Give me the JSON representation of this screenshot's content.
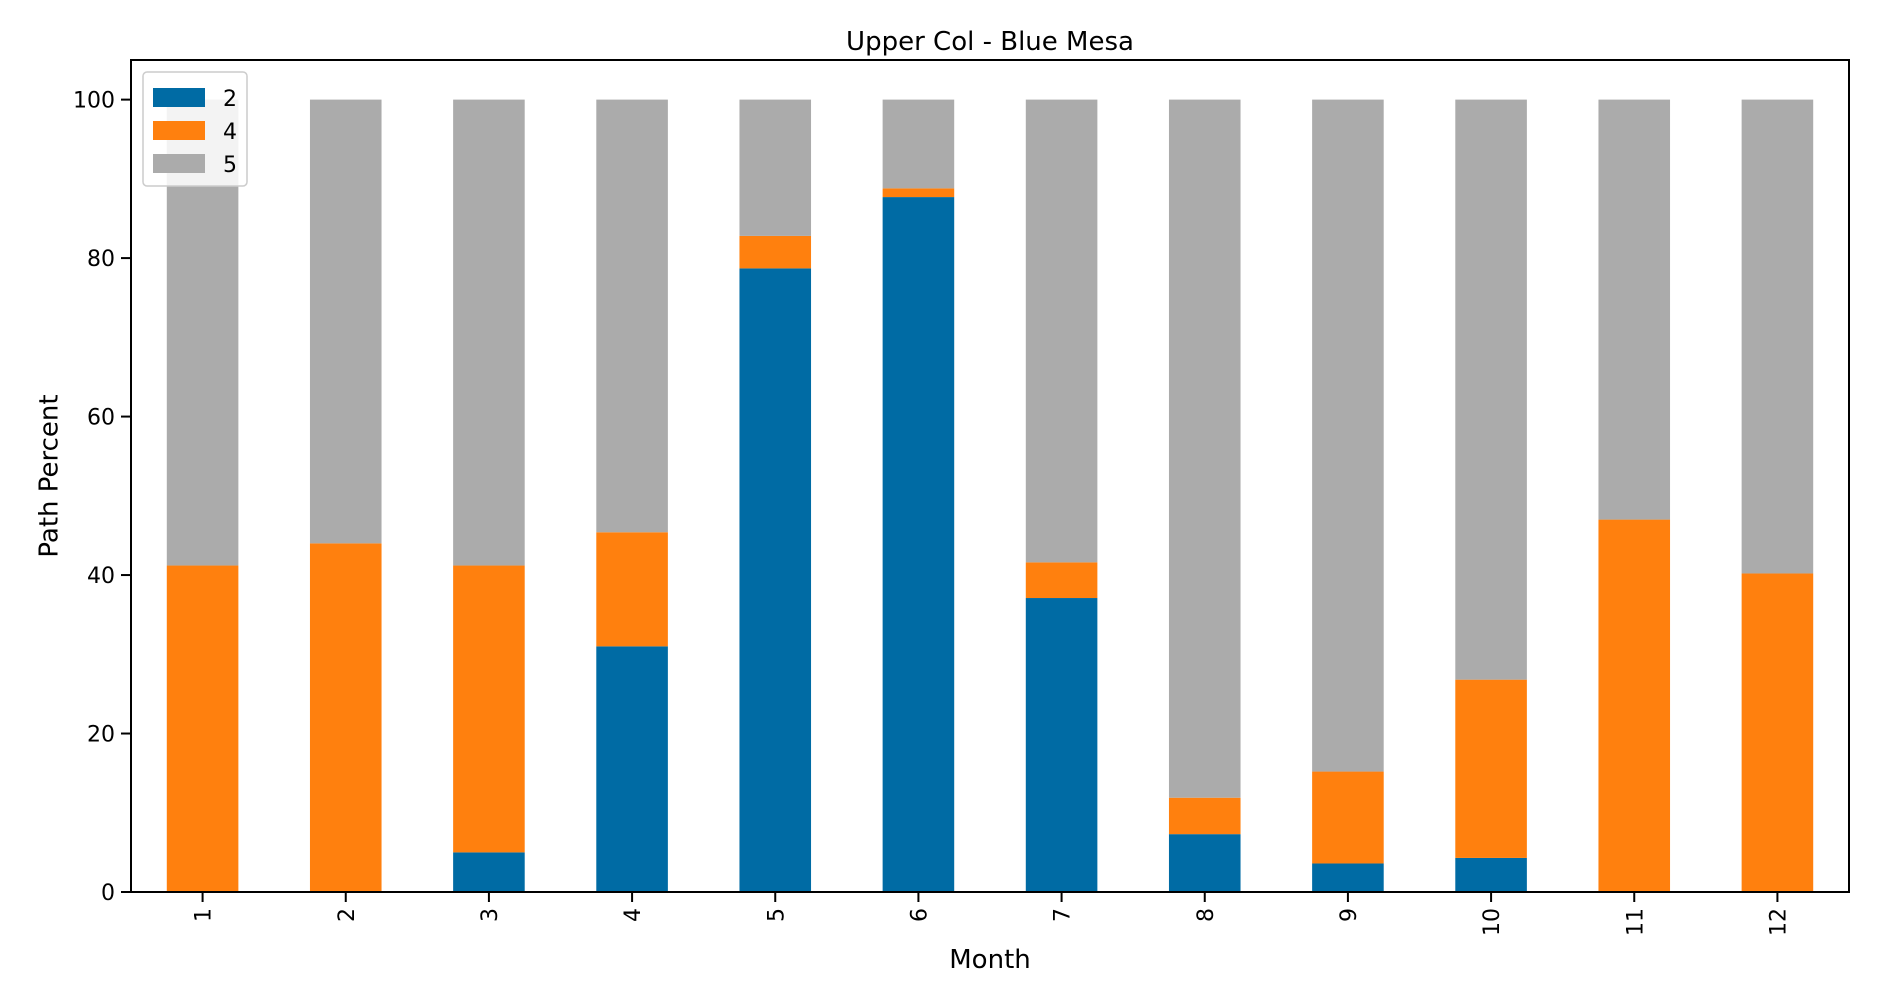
{
  "chart_data": {
    "type": "bar",
    "stacked": true,
    "title": "Upper Col - Blue Mesa",
    "xlabel": "Month",
    "ylabel": "Path Percent",
    "categories": [
      "1",
      "2",
      "3",
      "4",
      "5",
      "6",
      "7",
      "8",
      "9",
      "10",
      "11",
      "12"
    ],
    "ylim": [
      0,
      105
    ],
    "yticks": [
      "0",
      "20",
      "40",
      "60",
      "80",
      "100"
    ],
    "grid": false,
    "legend_position": "top-left",
    "series": [
      {
        "name": "2",
        "color": "#006ba4",
        "values": [
          0,
          0,
          5,
          31,
          78.7,
          87.7,
          37.1,
          7.3,
          3.6,
          4.3,
          0,
          0
        ]
      },
      {
        "name": "4",
        "color": "#ff800e",
        "values": [
          41.2,
          44.0,
          36.2,
          14.4,
          4.1,
          1.1,
          4.5,
          4.6,
          11.6,
          22.5,
          47.0,
          40.2
        ]
      },
      {
        "name": "5",
        "color": "#ababab",
        "values": [
          58.8,
          56.0,
          58.8,
          54.6,
          17.2,
          11.2,
          58.4,
          88.1,
          84.8,
          73.2,
          53.0,
          59.8
        ]
      }
    ]
  }
}
